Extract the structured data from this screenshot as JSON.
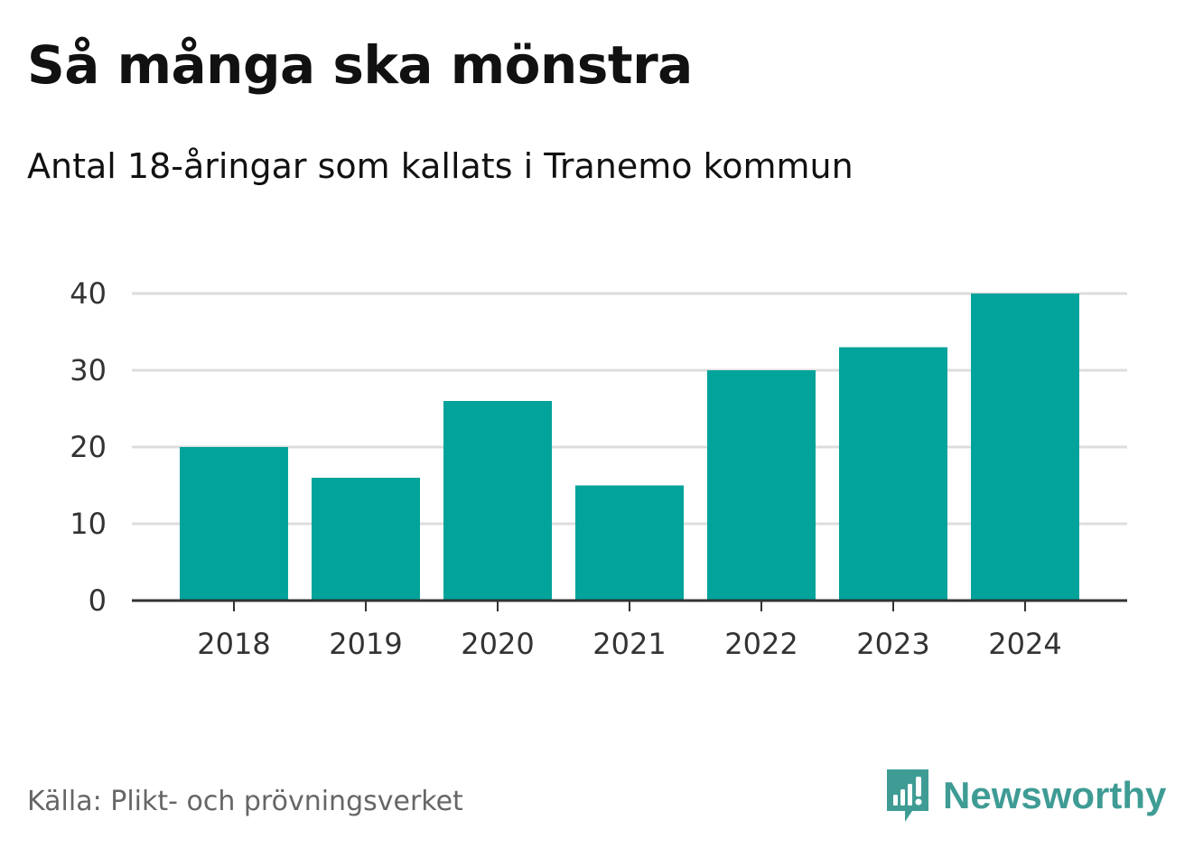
{
  "title": "Så många ska mönstra",
  "subtitle": "Antal 18-åringar som kallats i Tranemo kommun",
  "source": "Källa: Plikt- och prövningsverket",
  "brand": {
    "name": "Newsworthy",
    "icon": "newsworthy-logo-icon",
    "color": "#3f9c95"
  },
  "colors": {
    "bar": "#02a39a",
    "grid": "#dddddd",
    "axis": "#333333",
    "tick_text": "#333333"
  },
  "chart_data": {
    "type": "bar",
    "title": "Så många ska mönstra",
    "subtitle": "Antal 18-åringar som kallats i Tranemo kommun",
    "xlabel": "",
    "ylabel": "",
    "categories": [
      "2018",
      "2019",
      "2020",
      "2021",
      "2022",
      "2023",
      "2024"
    ],
    "values": [
      20,
      16,
      26,
      15,
      30,
      33,
      40
    ],
    "ylim": [
      0,
      40
    ],
    "yticks": [
      0,
      10,
      20,
      30,
      40
    ],
    "grid": true,
    "legend": "none"
  }
}
